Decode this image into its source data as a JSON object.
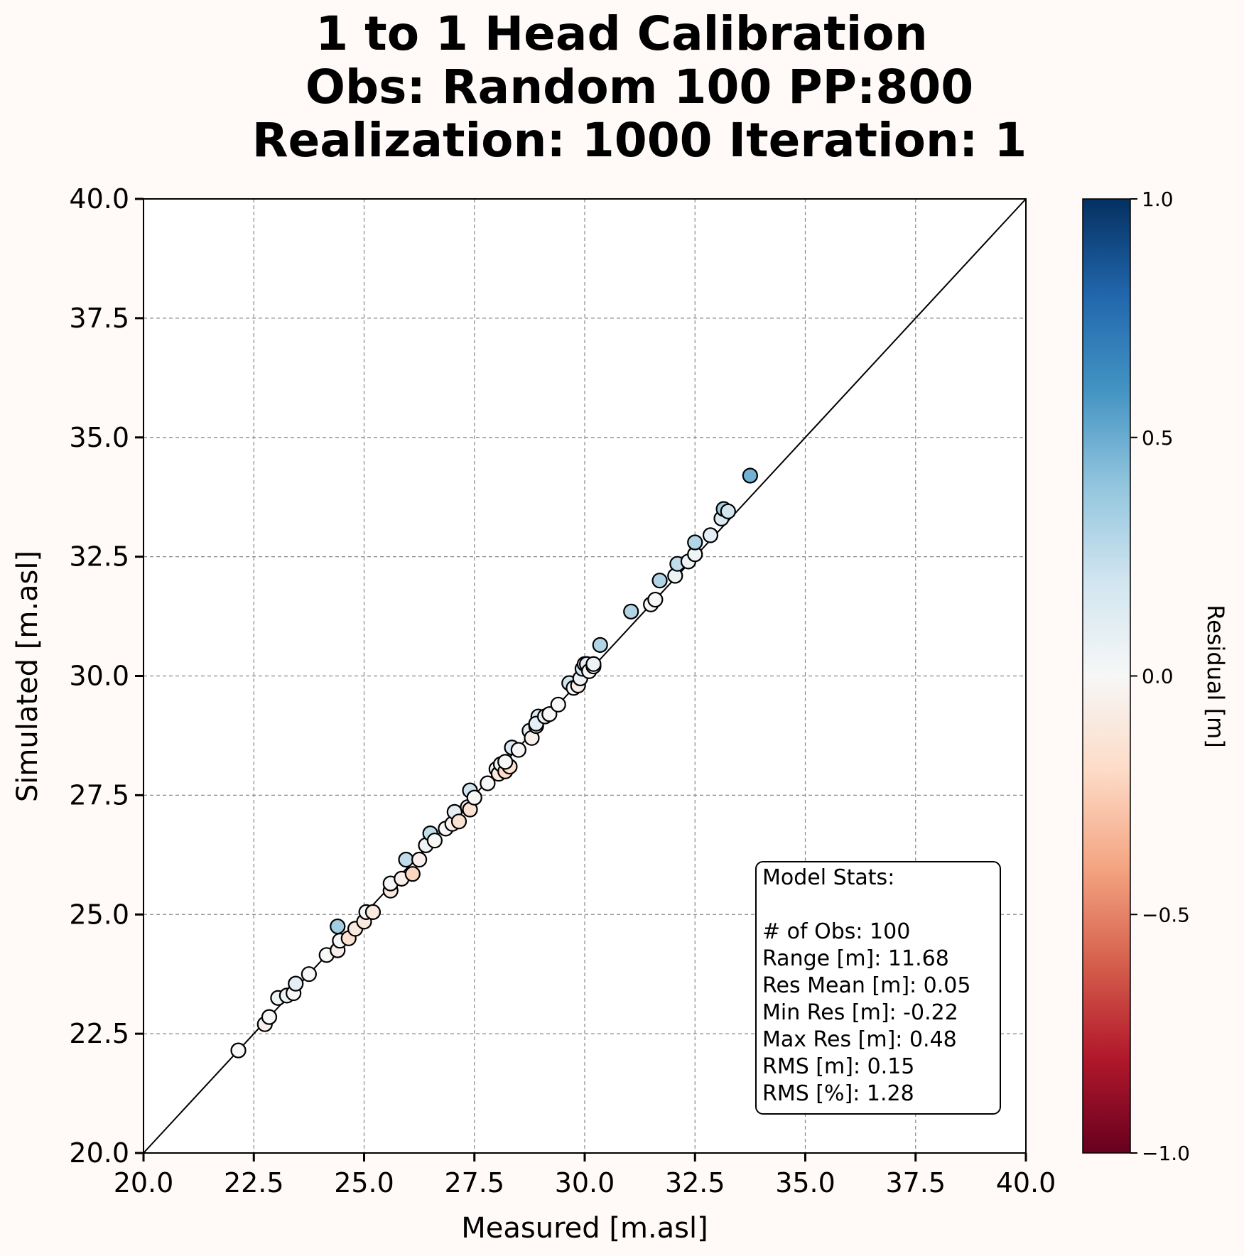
{
  "title_lines": [
    "1 to 1 Head Calibration",
    "Obs: Random 100    PP:800",
    "Realization: 1000  Iteration: 1"
  ],
  "chart_data": {
    "type": "scatter",
    "xlabel": "Measured [m.asl]",
    "ylabel": "Simulated [m.asl]",
    "xlim": [
      20.0,
      40.0
    ],
    "ylim": [
      20.0,
      40.0
    ],
    "x_ticks": [
      "20.0",
      "22.5",
      "25.0",
      "27.5",
      "30.0",
      "32.5",
      "35.0",
      "37.5",
      "40.0"
    ],
    "y_ticks": [
      "20.0",
      "22.5",
      "25.0",
      "27.5",
      "30.0",
      "32.5",
      "35.0",
      "37.5",
      "40.0"
    ],
    "grid": true,
    "reference_line": "1:1",
    "colorbar": {
      "label": "Residual [m]",
      "colormap": "RdBu",
      "range": [
        -1.0,
        1.0
      ],
      "ticks": [
        "1.0",
        "0.5",
        "0.0",
        "−0.5",
        "−1.0"
      ]
    },
    "points": [
      {
        "x": 22.15,
        "y": 22.15,
        "r": 0.0
      },
      {
        "x": 22.75,
        "y": 22.7,
        "r": -0.05
      },
      {
        "x": 22.85,
        "y": 22.85,
        "r": 0.0
      },
      {
        "x": 23.05,
        "y": 23.25,
        "r": 0.05
      },
      {
        "x": 23.25,
        "y": 23.3,
        "r": 0.05
      },
      {
        "x": 23.4,
        "y": 23.35,
        "r": 0.0
      },
      {
        "x": 23.45,
        "y": 23.55,
        "r": 0.1
      },
      {
        "x": 23.75,
        "y": 23.75,
        "r": 0.0
      },
      {
        "x": 24.15,
        "y": 24.15,
        "r": 0.0
      },
      {
        "x": 24.4,
        "y": 24.25,
        "r": -0.05
      },
      {
        "x": 24.45,
        "y": 24.45,
        "r": 0.0
      },
      {
        "x": 24.4,
        "y": 24.75,
        "r": 0.35
      },
      {
        "x": 24.65,
        "y": 24.5,
        "r": -0.15
      },
      {
        "x": 24.8,
        "y": 24.7,
        "r": -0.1
      },
      {
        "x": 25.0,
        "y": 24.85,
        "r": -0.1
      },
      {
        "x": 25.05,
        "y": 25.05,
        "r": 0.0
      },
      {
        "x": 25.2,
        "y": 25.05,
        "r": -0.1
      },
      {
        "x": 25.6,
        "y": 25.5,
        "r": -0.1
      },
      {
        "x": 25.6,
        "y": 25.65,
        "r": 0.0
      },
      {
        "x": 25.85,
        "y": 25.75,
        "r": -0.05
      },
      {
        "x": 25.95,
        "y": 26.15,
        "r": 0.25
      },
      {
        "x": 26.1,
        "y": 25.85,
        "r": -0.22
      },
      {
        "x": 26.25,
        "y": 26.15,
        "r": -0.05
      },
      {
        "x": 26.4,
        "y": 26.45,
        "r": 0.05
      },
      {
        "x": 26.5,
        "y": 26.7,
        "r": 0.25
      },
      {
        "x": 26.6,
        "y": 26.55,
        "r": 0.0
      },
      {
        "x": 26.85,
        "y": 26.8,
        "r": 0.0
      },
      {
        "x": 27.0,
        "y": 26.9,
        "r": -0.05
      },
      {
        "x": 27.05,
        "y": 27.15,
        "r": 0.1
      },
      {
        "x": 27.15,
        "y": 26.95,
        "r": -0.15
      },
      {
        "x": 27.35,
        "y": 27.25,
        "r": -0.05
      },
      {
        "x": 27.4,
        "y": 27.2,
        "r": -0.15
      },
      {
        "x": 27.4,
        "y": 27.6,
        "r": 0.2
      },
      {
        "x": 27.5,
        "y": 27.45,
        "r": 0.0
      },
      {
        "x": 27.8,
        "y": 27.75,
        "r": 0.0
      },
      {
        "x": 28.0,
        "y": 28.05,
        "r": 0.05
      },
      {
        "x": 28.05,
        "y": 27.95,
        "r": -0.1
      },
      {
        "x": 28.1,
        "y": 28.15,
        "r": 0.05
      },
      {
        "x": 28.2,
        "y": 28.0,
        "r": -0.2
      },
      {
        "x": 28.3,
        "y": 28.1,
        "r": -0.15
      },
      {
        "x": 28.2,
        "y": 28.2,
        "r": 0.0
      },
      {
        "x": 28.35,
        "y": 28.5,
        "r": 0.15
      },
      {
        "x": 28.5,
        "y": 28.45,
        "r": 0.0
      },
      {
        "x": 28.75,
        "y": 28.85,
        "r": 0.1
      },
      {
        "x": 28.8,
        "y": 28.7,
        "r": -0.05
      },
      {
        "x": 28.9,
        "y": 28.95,
        "r": 0.05
      },
      {
        "x": 28.95,
        "y": 29.15,
        "r": 0.15
      },
      {
        "x": 28.9,
        "y": 29.0,
        "r": 0.1
      },
      {
        "x": 29.1,
        "y": 29.15,
        "r": 0.05
      },
      {
        "x": 29.2,
        "y": 29.2,
        "r": 0.0
      },
      {
        "x": 29.4,
        "y": 29.4,
        "r": 0.0
      },
      {
        "x": 29.65,
        "y": 29.85,
        "r": 0.2
      },
      {
        "x": 29.75,
        "y": 29.75,
        "r": 0.0
      },
      {
        "x": 29.85,
        "y": 29.8,
        "r": -0.05
      },
      {
        "x": 29.9,
        "y": 29.95,
        "r": 0.05
      },
      {
        "x": 29.95,
        "y": 30.15,
        "r": 0.2
      },
      {
        "x": 30.0,
        "y": 30.25,
        "r": 0.1
      },
      {
        "x": 30.05,
        "y": 30.25,
        "r": 0.1
      },
      {
        "x": 30.1,
        "y": 30.1,
        "r": 0.0
      },
      {
        "x": 30.2,
        "y": 30.2,
        "r": 0.0
      },
      {
        "x": 30.2,
        "y": 30.25,
        "r": 0.05
      },
      {
        "x": 30.35,
        "y": 30.65,
        "r": 0.3
      },
      {
        "x": 31.05,
        "y": 31.35,
        "r": 0.3
      },
      {
        "x": 31.5,
        "y": 31.5,
        "r": 0.0
      },
      {
        "x": 31.6,
        "y": 31.6,
        "r": 0.0
      },
      {
        "x": 31.7,
        "y": 32.0,
        "r": 0.3
      },
      {
        "x": 32.05,
        "y": 32.1,
        "r": 0.05
      },
      {
        "x": 32.1,
        "y": 32.35,
        "r": 0.25
      },
      {
        "x": 32.35,
        "y": 32.4,
        "r": 0.05
      },
      {
        "x": 32.5,
        "y": 32.55,
        "r": 0.05
      },
      {
        "x": 32.5,
        "y": 32.8,
        "r": 0.3
      },
      {
        "x": 32.85,
        "y": 32.95,
        "r": 0.1
      },
      {
        "x": 33.1,
        "y": 33.3,
        "r": 0.15
      },
      {
        "x": 33.15,
        "y": 33.5,
        "r": 0.35
      },
      {
        "x": 33.25,
        "y": 33.45,
        "r": 0.2
      },
      {
        "x": 33.75,
        "y": 34.2,
        "r": 0.48
      }
    ]
  },
  "stats_box": {
    "lines": [
      "Model Stats:",
      "",
      "# of Obs: 100",
      "Range [m]: 11.68",
      "Res Mean [m]: 0.05",
      "Min Res [m]: -0.22",
      "Max Res [m]: 0.48",
      "RMS [m]: 0.15",
      "RMS [%]: 1.28"
    ]
  }
}
